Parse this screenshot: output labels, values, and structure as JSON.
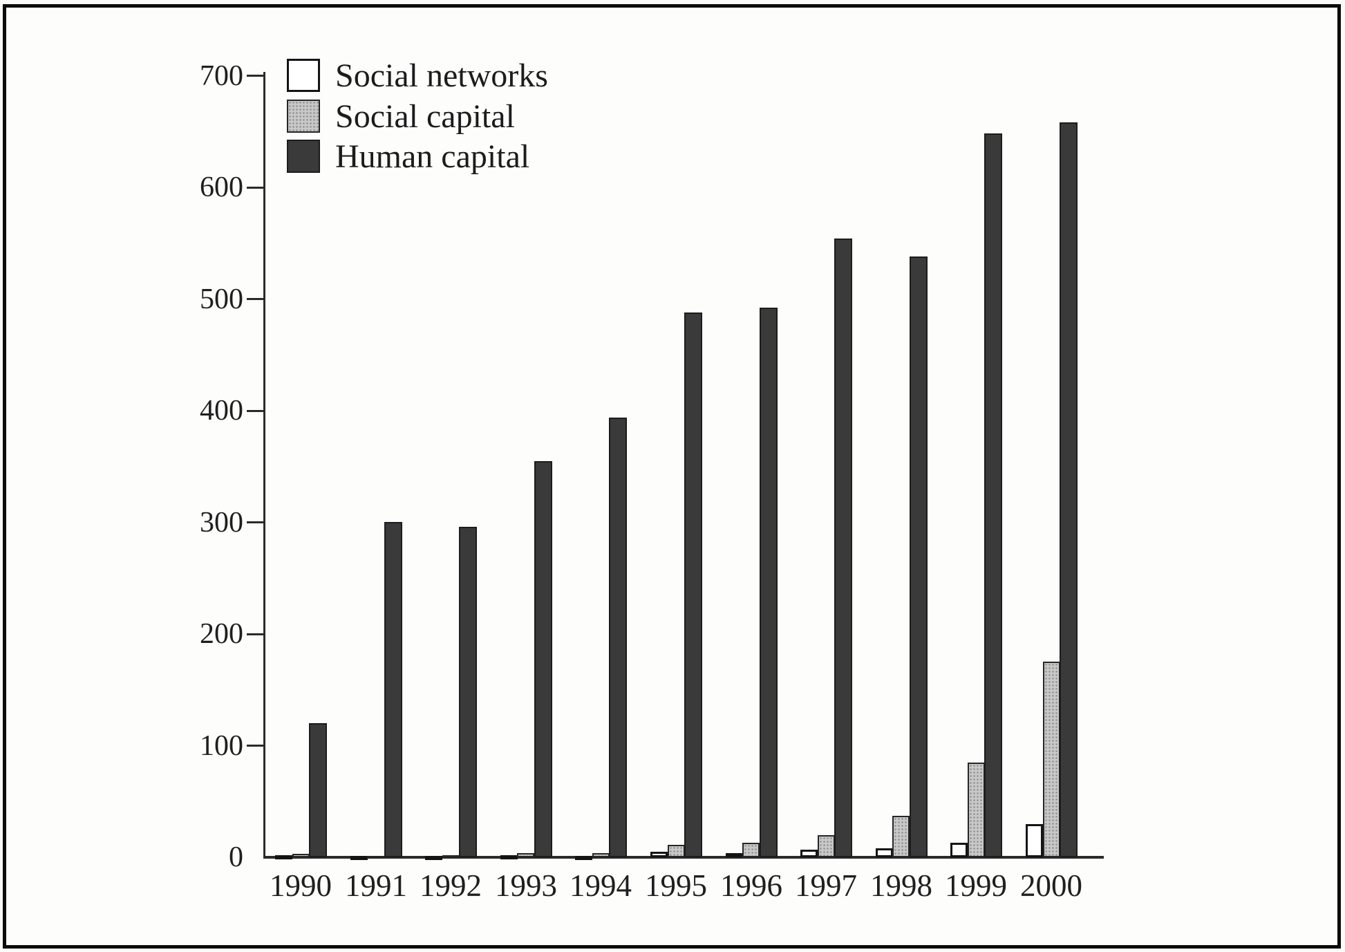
{
  "figure": {
    "kind": "scanned book figure",
    "background": "#fdfdfc",
    "frame_color": "#0c0c0c"
  },
  "chart_data": {
    "type": "bar",
    "title": "",
    "xlabel": "",
    "ylabel": "",
    "categories": [
      "1990",
      "1991",
      "1992",
      "1993",
      "1994",
      "1995",
      "1996",
      "1997",
      "1998",
      "1999",
      "2000"
    ],
    "series": [
      {
        "name": "Social networks",
        "fill": "social-networks",
        "values": [
          2,
          1,
          1,
          2,
          1,
          5,
          4,
          7,
          8,
          13,
          30
        ]
      },
      {
        "name": "Social capital",
        "fill": "social-capital",
        "values": [
          3,
          1,
          2,
          4,
          4,
          11,
          13,
          20,
          37,
          85,
          175
        ]
      },
      {
        "name": "Human capital",
        "fill": "human-capital",
        "values": [
          120,
          300,
          296,
          355,
          394,
          488,
          492,
          554,
          538,
          648,
          658
        ]
      }
    ],
    "ylim": [
      0,
      700
    ],
    "ytick_interval": 100,
    "ytick_labels": [
      "0",
      "100",
      "200",
      "300",
      "400",
      "500",
      "600",
      "700"
    ],
    "legend_position": "top-left-inside",
    "grid": false
  },
  "colors": {
    "social_networks_fill": "#ffffff",
    "social_capital_fill": "#c8c8c8",
    "social_capital_dot": "#878787",
    "human_capital_fill": "#3a3a3a",
    "bar_outline": "#1c1c1c",
    "axis": "#2b2b2b",
    "text": "#1f1f1f"
  }
}
